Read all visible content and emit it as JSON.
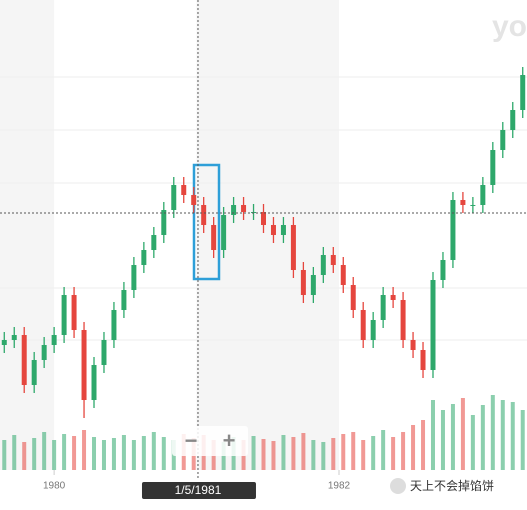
{
  "chart_data": {
    "type": "candlestick",
    "logo": "yo",
    "xlim": [
      1979.62,
      1983.32
    ],
    "xticks": [
      1980,
      1982
    ],
    "ylim": [
      40,
      510
    ],
    "volume_lim": [
      0,
      100
    ],
    "up_color": "#2ea86b",
    "down_color": "#e5463e",
    "x": [
      1979.65,
      1979.72,
      1979.79,
      1979.86,
      1979.93,
      1980.0,
      1980.07,
      1980.14,
      1980.21,
      1980.28,
      1980.35,
      1980.42,
      1980.49,
      1980.56,
      1980.63,
      1980.7,
      1980.77,
      1980.84,
      1980.91,
      1980.98,
      1981.05,
      1981.12,
      1981.19,
      1981.26,
      1981.33,
      1981.4,
      1981.47,
      1981.54,
      1981.61,
      1981.68,
      1981.75,
      1981.82,
      1981.89,
      1981.96,
      1982.03,
      1982.1,
      1982.17,
      1982.24,
      1982.31,
      1982.38,
      1982.45,
      1982.52,
      1982.59,
      1982.66,
      1982.73,
      1982.8,
      1982.87,
      1982.94,
      1983.01,
      1983.08,
      1983.15,
      1983.22,
      1983.29
    ],
    "open": [
      165,
      170,
      175,
      125,
      150,
      165,
      175,
      215,
      180,
      110,
      145,
      170,
      200,
      220,
      245,
      260,
      275,
      300,
      325,
      315,
      305,
      285,
      260,
      295,
      305,
      298,
      298,
      285,
      275,
      285,
      240,
      215,
      235,
      255,
      245,
      225,
      200,
      170,
      190,
      215,
      210,
      170,
      160,
      140,
      230,
      250,
      310,
      305,
      305,
      325,
      360,
      380,
      400
    ],
    "high": [
      178,
      183,
      183,
      158,
      173,
      183,
      223,
      223,
      188,
      153,
      178,
      208,
      228,
      253,
      268,
      283,
      308,
      333,
      333,
      323,
      313,
      293,
      303,
      313,
      313,
      306,
      306,
      293,
      293,
      293,
      248,
      243,
      263,
      263,
      253,
      233,
      208,
      198,
      223,
      223,
      218,
      178,
      168,
      238,
      258,
      318,
      318,
      313,
      333,
      368,
      388,
      408,
      443
    ],
    "low": [
      157,
      162,
      117,
      117,
      142,
      157,
      167,
      172,
      92,
      102,
      137,
      162,
      192,
      212,
      237,
      252,
      267,
      292,
      307,
      297,
      277,
      252,
      252,
      287,
      290,
      290,
      277,
      267,
      267,
      232,
      207,
      207,
      227,
      237,
      217,
      192,
      162,
      162,
      182,
      202,
      162,
      152,
      132,
      132,
      222,
      242,
      297,
      297,
      297,
      317,
      352,
      372,
      392
    ],
    "close": [
      170,
      175,
      125,
      150,
      165,
      175,
      215,
      180,
      110,
      145,
      170,
      200,
      220,
      245,
      260,
      275,
      300,
      325,
      315,
      305,
      285,
      260,
      295,
      305,
      298,
      298,
      285,
      275,
      285,
      240,
      215,
      235,
      255,
      245,
      225,
      200,
      170,
      190,
      215,
      210,
      170,
      160,
      140,
      230,
      250,
      310,
      305,
      305,
      325,
      360,
      380,
      400,
      435
    ],
    "volume": [
      30,
      35,
      28,
      32,
      38,
      30,
      36,
      34,
      40,
      33,
      30,
      32,
      35,
      30,
      34,
      38,
      33,
      30,
      36,
      32,
      35,
      30,
      28,
      33,
      30,
      34,
      31,
      29,
      35,
      33,
      37,
      30,
      28,
      32,
      36,
      38,
      30,
      34,
      40,
      33,
      38,
      45,
      50,
      70,
      60,
      66,
      72,
      55,
      65,
      75,
      70,
      68,
      60
    ],
    "crosshair": {
      "x": 1981.01,
      "y": 297,
      "label": "1/5/1981"
    },
    "zoom_out": "−",
    "zoom_in": "+",
    "watermark": "天上不会掉馅饼"
  }
}
